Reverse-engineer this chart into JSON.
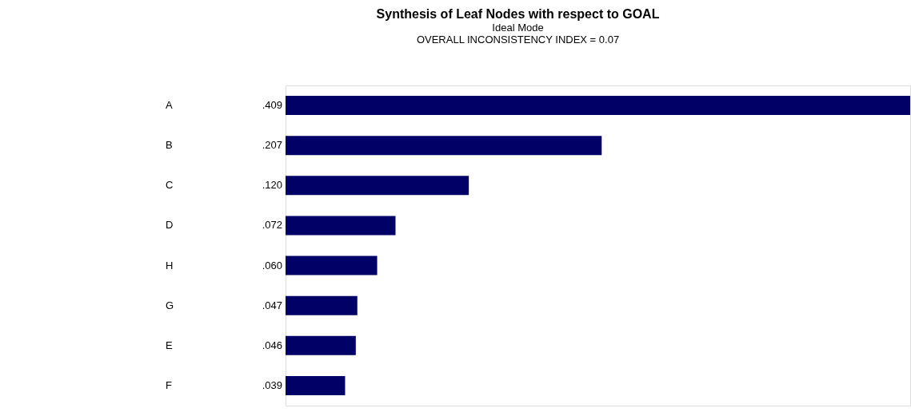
{
  "chart_data": {
    "type": "bar",
    "orientation": "horizontal",
    "title": "Synthesis of Leaf Nodes with respect to GOAL",
    "subtitle": "Ideal Mode",
    "annotations": [
      "OVERALL INCONSISTENCY INDEX =  0.07"
    ],
    "categories": [
      "A",
      "B",
      "C",
      "D",
      "H",
      "G",
      "E",
      "F"
    ],
    "values": [
      0.409,
      0.207,
      0.12,
      0.072,
      0.06,
      0.047,
      0.046,
      0.039
    ],
    "value_labels": [
      ".409",
      ".207",
      ".120",
      ".072",
      ".060",
      ".047",
      ".046",
      ".039"
    ],
    "color": "#000066"
  }
}
